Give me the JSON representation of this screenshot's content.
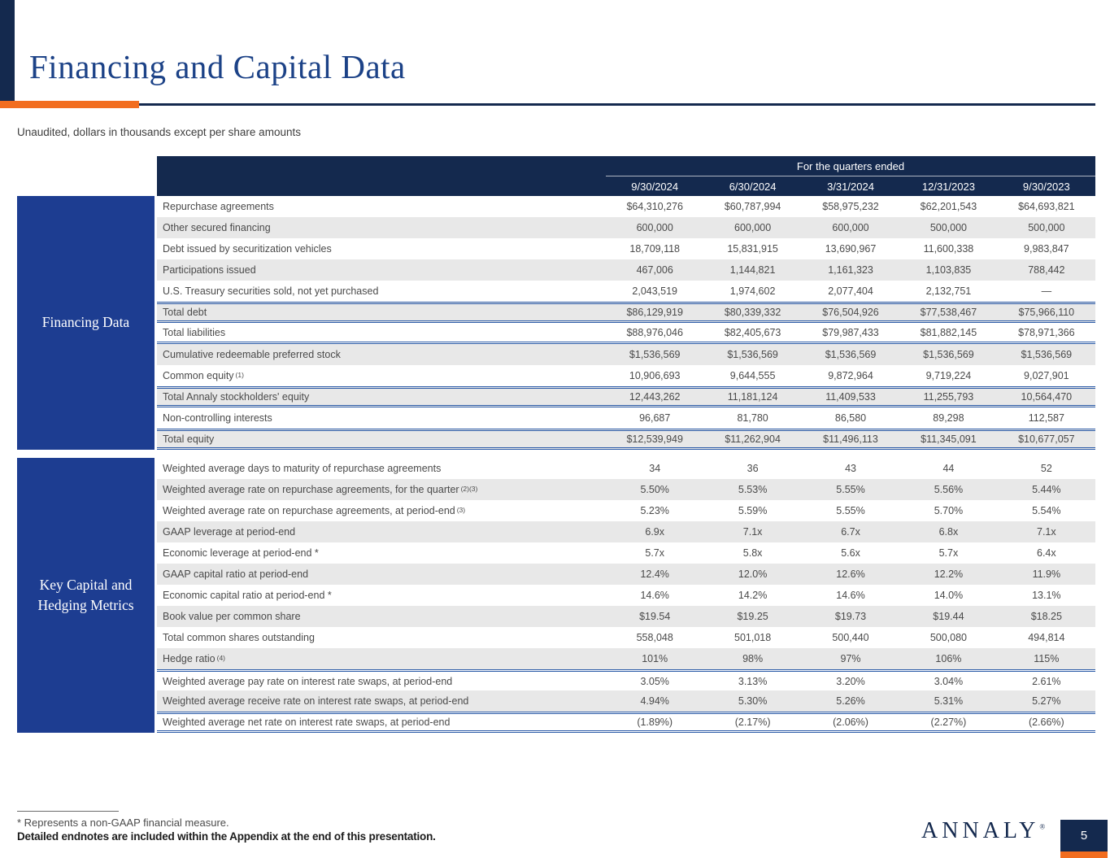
{
  "slide": {
    "title": "Financing and Capital Data",
    "subtitle": "Unaudited, dollars in thousands except per share amounts",
    "footnote_1": "* Represents a non-GAAP financial measure.",
    "footnote_2": "Detailed endnotes are included within the Appendix at the end of this presentation.",
    "logo_text": "ANNALY",
    "logo_mark": "®",
    "page_number": "5"
  },
  "colors": {
    "header_navy": "#14294e",
    "sidebar_blue": "#1d3d91",
    "accent_orange": "#f26d1f",
    "total_rule_blue": "#2d5ca8",
    "zebra_gray": "#e8e8e8",
    "title_blue": "#1c4287"
  },
  "table": {
    "quarters_header": "For the quarters ended",
    "columns": [
      "9/30/2024",
      "6/30/2024",
      "3/31/2024",
      "12/31/2023",
      "9/30/2023"
    ],
    "sections": [
      {
        "name": "Financing Data",
        "rows": [
          {
            "label": "Repurchase agreements",
            "values": [
              "$64,310,276",
              "$60,787,994",
              "$58,975,232",
              "$62,201,543",
              "$64,693,821"
            ]
          },
          {
            "label": "Other secured financing",
            "values": [
              "600,000",
              "600,000",
              "600,000",
              "500,000",
              "500,000"
            ]
          },
          {
            "label": "Debt issued by securitization vehicles",
            "values": [
              "18,709,118",
              "15,831,915",
              "13,690,967",
              "11,600,338",
              "9,983,847"
            ]
          },
          {
            "label": "Participations issued",
            "values": [
              "467,006",
              "1,144,821",
              "1,161,323",
              "1,103,835",
              "788,442"
            ]
          },
          {
            "label": "U.S. Treasury securities sold, not yet purchased",
            "values": [
              "2,043,519",
              "1,974,602",
              "2,077,404",
              "2,132,751",
              "—"
            ]
          },
          {
            "label": "Total debt",
            "rule_top": true,
            "rule_bottom": true,
            "values": [
              "$86,129,919",
              "$80,339,332",
              "$76,504,926",
              "$77,538,467",
              "$75,966,110"
            ]
          },
          {
            "label": "Total liabilities",
            "rule_bottom": true,
            "values": [
              "$88,976,046",
              "$82,405,673",
              "$79,987,433",
              "$81,882,145",
              "$78,971,366"
            ]
          },
          {
            "label": "Cumulative redeemable preferred stock",
            "values": [
              "$1,536,569",
              "$1,536,569",
              "$1,536,569",
              "$1,536,569",
              "$1,536,569"
            ]
          },
          {
            "label": "Common equity",
            "sup": "(1)",
            "values": [
              "10,906,693",
              "9,644,555",
              "9,872,964",
              "9,719,224",
              "9,027,901"
            ]
          },
          {
            "label": "Total Annaly stockholders' equity",
            "rule_top": true,
            "rule_bottom": true,
            "values": [
              "12,443,262",
              "11,181,124",
              "11,409,533",
              "11,255,793",
              "10,564,470"
            ]
          },
          {
            "label": "Non-controlling interests",
            "values": [
              "96,687",
              "81,780",
              "86,580",
              "89,298",
              "112,587"
            ]
          },
          {
            "label": "Total equity",
            "rule_top": true,
            "rule_bottom": true,
            "values": [
              "$12,539,949",
              "$11,262,904",
              "$11,496,113",
              "$11,345,091",
              "$10,677,057"
            ]
          }
        ]
      },
      {
        "name": "Key Capital and Hedging Metrics",
        "rows": [
          {
            "label": "Weighted average days to maturity of repurchase agreements",
            "values": [
              "34",
              "36",
              "43",
              "44",
              "52"
            ]
          },
          {
            "label": "Weighted average rate on repurchase agreements, for the quarter",
            "sup": "(2)(3)",
            "values": [
              "5.50%",
              "5.53%",
              "5.55%",
              "5.56%",
              "5.44%"
            ]
          },
          {
            "label": "Weighted average rate on repurchase agreements, at period-end",
            "sup": "(3)",
            "values": [
              "5.23%",
              "5.59%",
              "5.55%",
              "5.70%",
              "5.54%"
            ]
          },
          {
            "label": "GAAP leverage at period-end",
            "values": [
              "6.9x",
              "7.1x",
              "6.7x",
              "6.8x",
              "7.1x"
            ]
          },
          {
            "label": "Economic leverage at period-end *",
            "values": [
              "5.7x",
              "5.8x",
              "5.6x",
              "5.7x",
              "6.4x"
            ]
          },
          {
            "label": "GAAP capital ratio at period-end",
            "values": [
              "12.4%",
              "12.0%",
              "12.6%",
              "12.2%",
              "11.9%"
            ]
          },
          {
            "label": "Economic capital ratio at period-end *",
            "values": [
              "14.6%",
              "14.2%",
              "14.6%",
              "14.0%",
              "13.1%"
            ]
          },
          {
            "label": "Book value per common share",
            "values": [
              "$19.54",
              "$19.25",
              "$19.73",
              "$19.44",
              "$18.25"
            ]
          },
          {
            "label": "Total common shares outstanding",
            "values": [
              "558,048",
              "501,018",
              "500,440",
              "500,080",
              "494,814"
            ]
          },
          {
            "label": "Hedge ratio",
            "sup": "(4)",
            "values": [
              "101%",
              "98%",
              "97%",
              "106%",
              "115%"
            ]
          },
          {
            "label": "Weighted average pay rate on interest rate swaps, at period-end",
            "rule_top": true,
            "values": [
              "3.05%",
              "3.13%",
              "3.20%",
              "3.04%",
              "2.61%"
            ]
          },
          {
            "label": "Weighted average receive rate on interest rate swaps, at period-end",
            "values": [
              "4.94%",
              "5.30%",
              "5.26%",
              "5.31%",
              "5.27%"
            ]
          },
          {
            "label": "Weighted average net rate on interest rate swaps, at period-end",
            "rule_top": true,
            "rule_bottom": true,
            "values": [
              "(1.89%)",
              "(2.17%)",
              "(2.06%)",
              "(2.27%)",
              "(2.66%)"
            ]
          }
        ]
      }
    ]
  }
}
